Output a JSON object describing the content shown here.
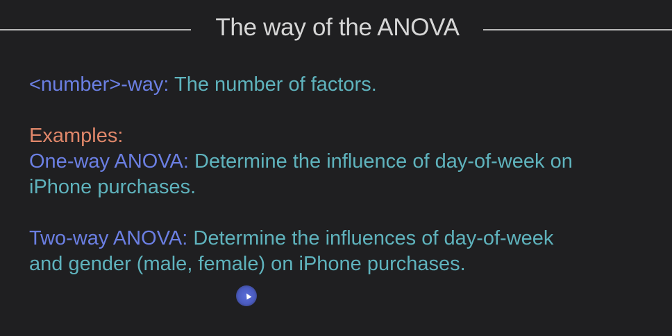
{
  "slide": {
    "title": "The way of the ANOVA",
    "definition": {
      "term": "<number>-way:",
      "text": " The number of factors."
    },
    "examples_label": "Examples:",
    "example_one": {
      "term": "One-way ANOVA:",
      "text_line1": " Determine the influence of day-of-week on",
      "text_line2": "iPhone purchases."
    },
    "example_two": {
      "term": "Two-way ANOVA:",
      "text_line1": " Determine the influences of day-of-week",
      "text_line2": "and gender (male, female) on iPhone purchases."
    }
  },
  "colors": {
    "background": "#1f1f21",
    "title": "#d6d6d6",
    "term": "#6b7fe3",
    "body": "#5fb3bd",
    "examples": "#e0876a"
  },
  "icons": {
    "cursor": "mouse-cursor-icon"
  }
}
